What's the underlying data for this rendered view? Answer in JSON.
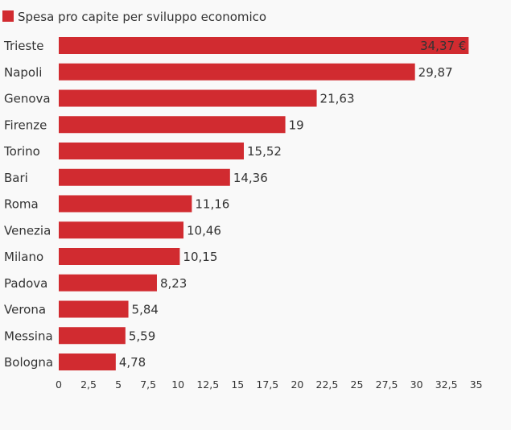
{
  "chart_data": {
    "type": "bar",
    "orientation": "horizontal",
    "categories": [
      "Trieste",
      "Napoli",
      "Genova",
      "Firenze",
      "Torino",
      "Bari",
      "Roma",
      "Venezia",
      "Milano",
      "Padova",
      "Verona",
      "Messina",
      "Bologna"
    ],
    "series": [
      {
        "name": "Spesa pro capite per sviluppo economico",
        "values": [
          34.37,
          29.87,
          21.63,
          19,
          15.52,
          14.36,
          11.16,
          10.46,
          10.15,
          8.23,
          5.84,
          5.59,
          4.78
        ],
        "value_labels": [
          "34,37 €",
          "29,87",
          "21,63",
          "19",
          "15,52",
          "14,36",
          "11,16",
          "10,46",
          "10,15",
          "8,23",
          "5,84",
          "5,59",
          "4,78"
        ],
        "color": "#d12b30"
      }
    ],
    "xlim": [
      0,
      35
    ],
    "x_ticks": [
      0,
      2.5,
      5,
      7.5,
      10,
      12.5,
      15,
      17.5,
      20,
      22.5,
      25,
      27.5,
      30,
      32.5,
      35
    ],
    "x_tick_labels": [
      "0",
      "2,5",
      "5",
      "7,5",
      "10",
      "12,5",
      "15",
      "17,5",
      "20",
      "22,5",
      "25",
      "27,5",
      "30",
      "32,5",
      "35"
    ],
    "legend_position": "top-left",
    "grid": false
  }
}
